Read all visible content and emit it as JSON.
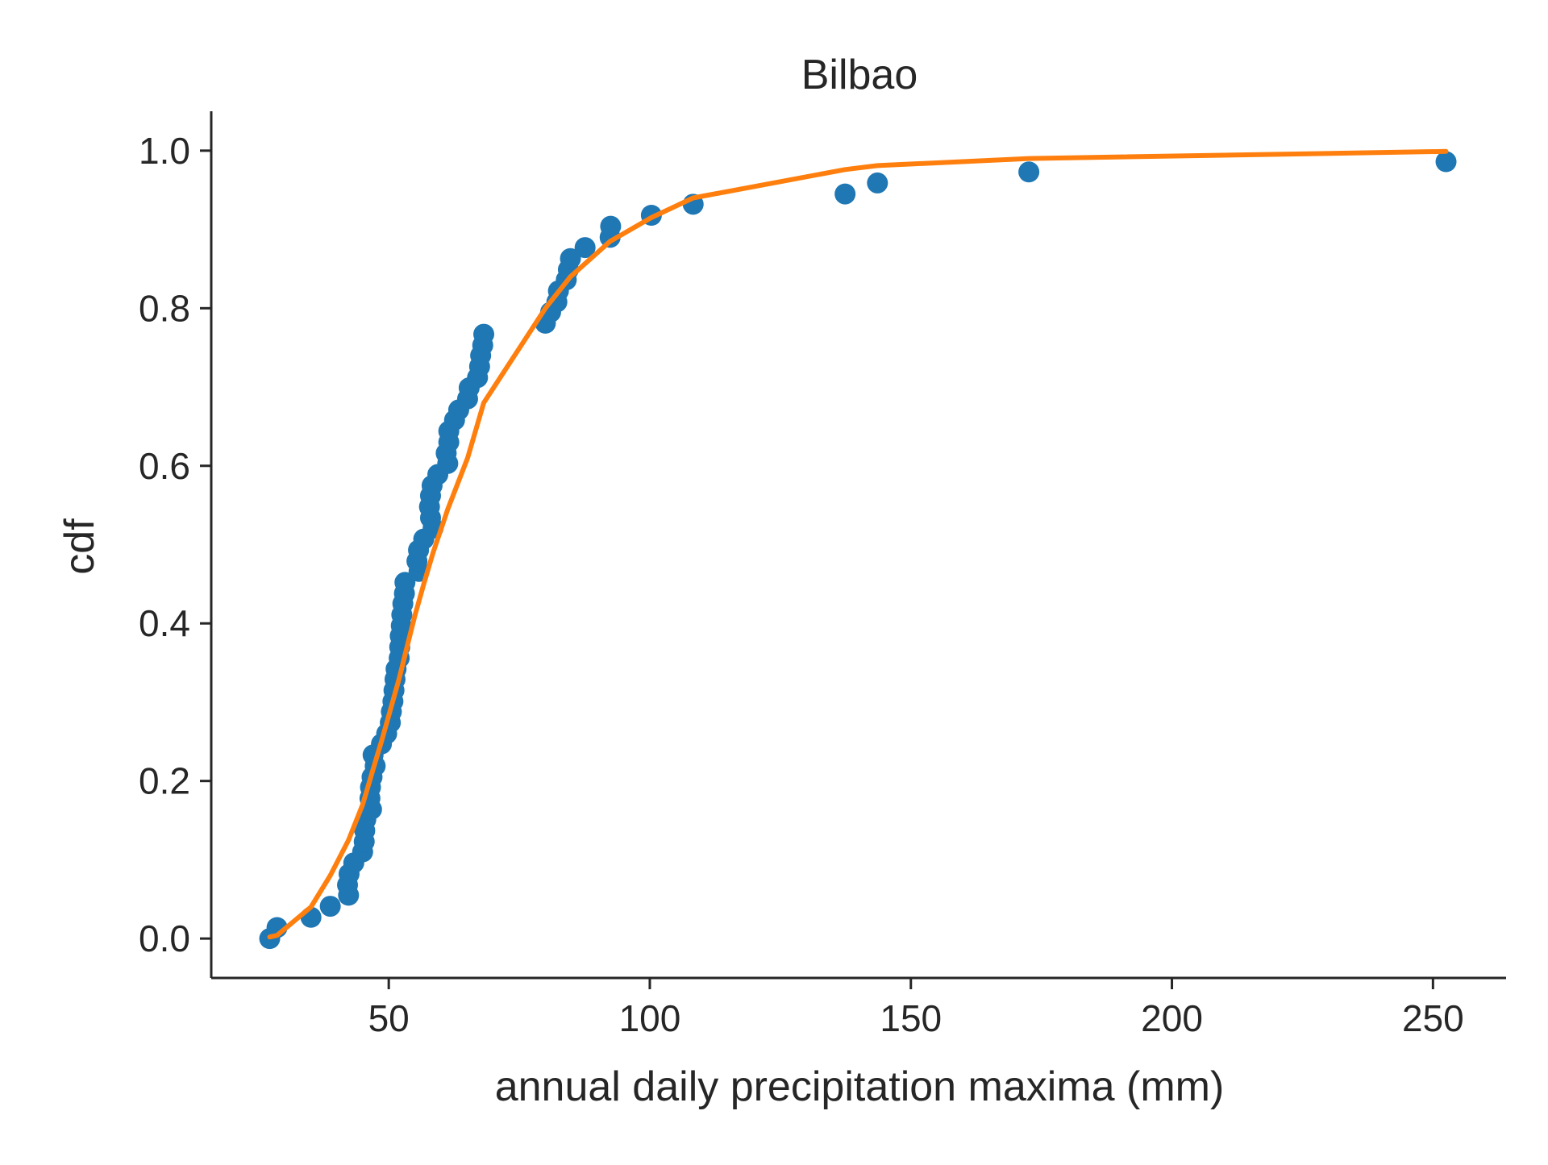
{
  "chart_data": {
    "type": "scatter",
    "title": "Bilbao",
    "xlabel": "annual daily precipitation maxima (mm)",
    "ylabel": "cdf",
    "xlim": [
      16,
      264
    ],
    "ylim": [
      -0.05,
      1.05
    ],
    "xticks": [
      50,
      100,
      150,
      200,
      250
    ],
    "xtick_labels": [
      "50",
      "100",
      "150",
      "200",
      "250"
    ],
    "yticks": [
      0.0,
      0.2,
      0.4,
      0.6,
      0.8,
      1.0
    ],
    "ytick_labels": [
      "0.0",
      "0.2",
      "0.4",
      "0.6",
      "0.8",
      "1.0"
    ],
    "grid": false,
    "colors": {
      "points": "#1f77b4",
      "fit_line": "#ff7f0e",
      "axis": "#262626"
    },
    "series": [
      {
        "kind": "scatter",
        "points": [
          [
            27.2,
            0.0
          ],
          [
            28.6,
            0.014
          ],
          [
            35.1,
            0.027
          ],
          [
            38.8,
            0.041
          ],
          [
            42.3,
            0.055
          ],
          [
            42.1,
            0.068
          ],
          [
            42.4,
            0.082
          ],
          [
            43.3,
            0.096
          ],
          [
            45.0,
            0.11
          ],
          [
            45.3,
            0.123
          ],
          [
            45.4,
            0.137
          ],
          [
            45.6,
            0.151
          ],
          [
            46.7,
            0.164
          ],
          [
            46.4,
            0.178
          ],
          [
            46.5,
            0.192
          ],
          [
            46.8,
            0.205
          ],
          [
            47.4,
            0.219
          ],
          [
            47.0,
            0.233
          ],
          [
            48.6,
            0.247
          ],
          [
            49.6,
            0.26
          ],
          [
            50.3,
            0.274
          ],
          [
            50.5,
            0.288
          ],
          [
            50.8,
            0.301
          ],
          [
            51.0,
            0.315
          ],
          [
            51.2,
            0.329
          ],
          [
            51.4,
            0.342
          ],
          [
            52.0,
            0.356
          ],
          [
            52.1,
            0.37
          ],
          [
            52.2,
            0.384
          ],
          [
            52.4,
            0.397
          ],
          [
            52.5,
            0.411
          ],
          [
            52.7,
            0.425
          ],
          [
            53.0,
            0.438
          ],
          [
            53.1,
            0.452
          ],
          [
            55.8,
            0.466
          ],
          [
            55.4,
            0.479
          ],
          [
            55.7,
            0.493
          ],
          [
            56.7,
            0.507
          ],
          [
            58.5,
            0.521
          ],
          [
            58.0,
            0.534
          ],
          [
            57.8,
            0.548
          ],
          [
            58.0,
            0.562
          ],
          [
            58.3,
            0.575
          ],
          [
            59.4,
            0.589
          ],
          [
            61.3,
            0.603
          ],
          [
            61.0,
            0.616
          ],
          [
            61.5,
            0.63
          ],
          [
            61.5,
            0.644
          ],
          [
            62.6,
            0.658
          ],
          [
            63.4,
            0.671
          ],
          [
            65.1,
            0.685
          ],
          [
            65.4,
            0.699
          ],
          [
            67.0,
            0.712
          ],
          [
            67.4,
            0.726
          ],
          [
            67.6,
            0.74
          ],
          [
            68.0,
            0.753
          ],
          [
            68.2,
            0.767
          ],
          [
            80.0,
            0.781
          ],
          [
            81.0,
            0.795
          ],
          [
            82.2,
            0.808
          ],
          [
            82.5,
            0.822
          ],
          [
            84.0,
            0.836
          ],
          [
            84.4,
            0.849
          ],
          [
            84.8,
            0.863
          ],
          [
            87.6,
            0.877
          ],
          [
            92.4,
            0.89
          ],
          [
            92.5,
            0.904
          ],
          [
            100.3,
            0.918
          ],
          [
            108.3,
            0.932
          ],
          [
            137.4,
            0.945
          ],
          [
            143.6,
            0.959
          ],
          [
            172.6,
            0.973
          ],
          [
            252.5,
            0.986
          ]
        ]
      },
      {
        "kind": "line",
        "points": [
          [
            27.2,
            0.002
          ],
          [
            28.6,
            0.004
          ],
          [
            35.1,
            0.04
          ],
          [
            38.8,
            0.08
          ],
          [
            42.3,
            0.125
          ],
          [
            45.0,
            0.17
          ],
          [
            47.0,
            0.215
          ],
          [
            48.6,
            0.25
          ],
          [
            50.3,
            0.29
          ],
          [
            52.0,
            0.33
          ],
          [
            53.5,
            0.37
          ],
          [
            55.0,
            0.41
          ],
          [
            56.7,
            0.45
          ],
          [
            58.5,
            0.49
          ],
          [
            61.3,
            0.545
          ],
          [
            65.1,
            0.61
          ],
          [
            68.2,
            0.68
          ],
          [
            80.0,
            0.8
          ],
          [
            84.8,
            0.84
          ],
          [
            92.4,
            0.885
          ],
          [
            100.3,
            0.915
          ],
          [
            108.3,
            0.94
          ],
          [
            137.4,
            0.976
          ],
          [
            143.6,
            0.981
          ],
          [
            172.6,
            0.99
          ],
          [
            252.5,
            0.999
          ]
        ]
      }
    ]
  }
}
